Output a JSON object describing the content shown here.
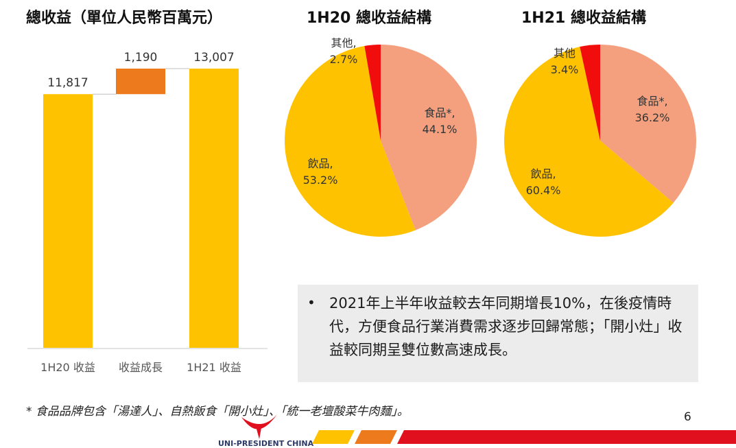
{
  "colors": {
    "yellow": "#FFC200",
    "orange": "#EE7A1E",
    "salmon": "#F4A07E",
    "red": "#F20D0D",
    "axis": "#c8c8c8",
    "box": "#ececec"
  },
  "titles": {
    "revenue": "總收益（單位人民幣百萬元）",
    "pie1": "1H20 總收益結構",
    "pie2": "1H21 總收益結構"
  },
  "chart_data": [
    {
      "type": "bar",
      "subtype": "waterfall",
      "title": "總收益（單位人民幣百萬元）",
      "categories": [
        "1H20 收益",
        "收益成長",
        "1H21 收益"
      ],
      "values": [
        11817,
        1190,
        13007
      ],
      "labels": [
        "11,817",
        "1,190",
        "13,007"
      ],
      "ylim": [
        0,
        13400
      ]
    },
    {
      "type": "pie",
      "title": "1H20 總收益結構",
      "slices": [
        {
          "name": "食品*,",
          "value": 44.1,
          "label": "44.1%",
          "color": "#F4A07E"
        },
        {
          "name": "飲品,",
          "value": 53.2,
          "label": "53.2%",
          "color": "#FFC200"
        },
        {
          "name": "其他,",
          "value": 2.7,
          "label": "2.7%",
          "color": "#F20D0D"
        }
      ]
    },
    {
      "type": "pie",
      "title": "1H21 總收益結構",
      "slices": [
        {
          "name": "食品*,",
          "value": 36.2,
          "label": "36.2%",
          "color": "#F4A07E"
        },
        {
          "name": "飲品,",
          "value": 60.4,
          "label": "60.4%",
          "color": "#FFC200"
        },
        {
          "name": "其他",
          "value": 3.4,
          "label": "3.4%",
          "color": "#F20D0D"
        }
      ]
    }
  ],
  "bullet": {
    "symbol": "•",
    "text": "2021年上半年收益較去年同期增長10%，在後疫情時代，方便食品行業消費需求逐步回歸常態；「開小灶」收益較同期呈雙位數高速成長。"
  },
  "footnote": "* 食品品牌包含「湯達人」、自熱飯食「開小灶」、「統一老壇酸菜牛肉麵」。",
  "page_number": "6",
  "logo": {
    "text": "UNI-PRESIDENT CHINA"
  }
}
